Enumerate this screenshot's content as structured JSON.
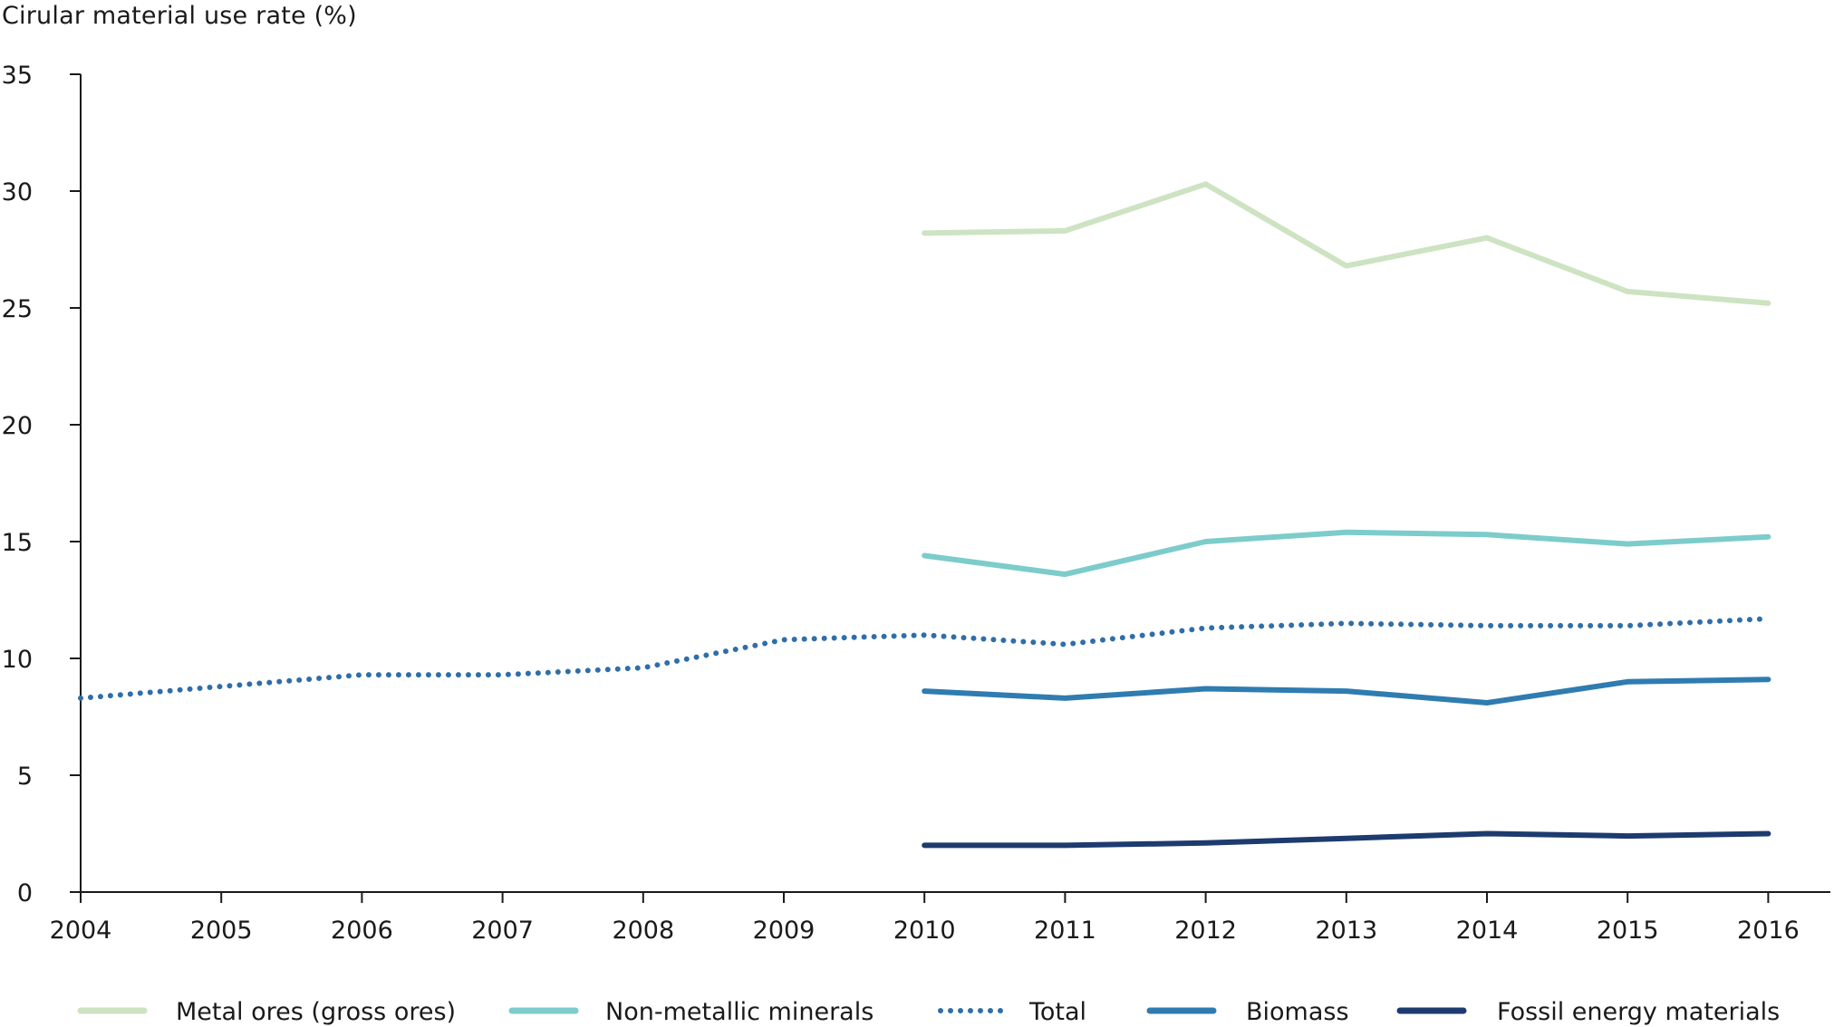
{
  "chart_data": {
    "type": "line",
    "title": "",
    "ylabel": "Cirular material use rate (%)",
    "xlabel": "",
    "ylim": [
      0,
      35
    ],
    "yticks": [
      "0",
      "5",
      "10",
      "15",
      "20",
      "25",
      "30",
      "35"
    ],
    "categories": [
      "2004",
      "2005",
      "2006",
      "2007",
      "2008",
      "2009",
      "2010",
      "2011",
      "2012",
      "2013",
      "2014",
      "2015",
      "2016"
    ],
    "grid": false,
    "legend_position": "bottom",
    "series": [
      {
        "name": "Metal ores (gross ores)",
        "color": "#cde3c2",
        "style": "solid",
        "values": [
          null,
          null,
          null,
          null,
          null,
          null,
          28.2,
          28.3,
          30.3,
          26.8,
          28.0,
          25.7,
          25.2
        ]
      },
      {
        "name": "Non-metallic minerals",
        "color": "#7ccccb",
        "style": "solid",
        "values": [
          null,
          null,
          null,
          null,
          null,
          null,
          14.4,
          13.6,
          15.0,
          15.4,
          15.3,
          14.9,
          15.2
        ]
      },
      {
        "name": "Total",
        "color": "#2f6ea8",
        "style": "dotted",
        "values": [
          8.3,
          8.8,
          9.3,
          9.3,
          9.6,
          10.8,
          11.0,
          10.6,
          11.3,
          11.5,
          11.4,
          11.4,
          11.7
        ]
      },
      {
        "name": "Biomass",
        "color": "#2f7cb1",
        "style": "solid",
        "values": [
          null,
          null,
          null,
          null,
          null,
          null,
          8.6,
          8.3,
          8.7,
          8.6,
          8.1,
          9.0,
          9.1
        ]
      },
      {
        "name": "Fossil energy materials",
        "color": "#1d3b6e",
        "style": "solid",
        "values": [
          null,
          null,
          null,
          null,
          null,
          null,
          2.0,
          2.0,
          2.1,
          2.3,
          2.5,
          2.4,
          2.5
        ]
      }
    ]
  }
}
